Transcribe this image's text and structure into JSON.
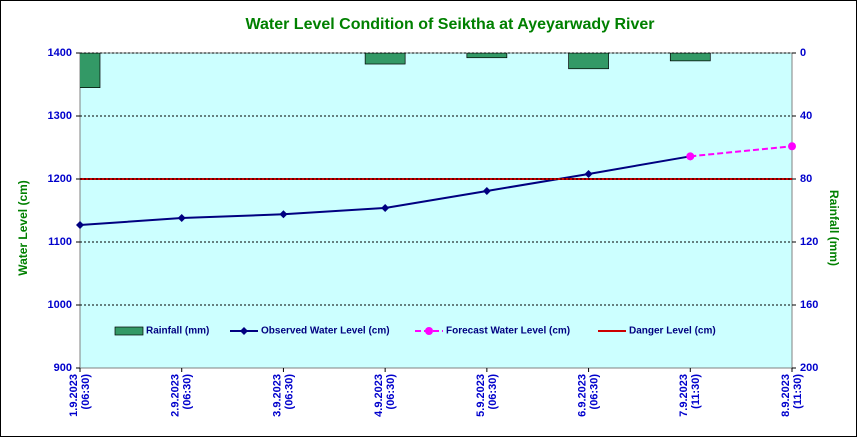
{
  "chart_data": {
    "type": "line",
    "title": "Water Level Condition  of Seiktha at Ayeyarwady  River",
    "ylabel": "Water Level (cm)",
    "y2label": "Rainfall (mm)",
    "categories": [
      [
        "1.9.2023",
        "(06:30)"
      ],
      [
        "2.9.2023",
        "(06:30)"
      ],
      [
        "3.9.2023",
        "(06:30)"
      ],
      [
        "4.9.2023",
        "(06:30)"
      ],
      [
        "5.9.2023",
        "(06:30)"
      ],
      [
        "6.9.2023",
        "(06:30)"
      ],
      [
        "7.9.2023",
        "(11:30)"
      ],
      [
        "8.9.2023",
        "(11:30)"
      ]
    ],
    "ylim": [
      900,
      1400
    ],
    "yticks": [
      900,
      1000,
      1100,
      1200,
      1300,
      1400
    ],
    "y2lim": [
      0,
      200
    ],
    "y2ticks": [
      0,
      40,
      80,
      120,
      160,
      200
    ],
    "y2reversed": true,
    "grid": true,
    "series": [
      {
        "name": "Rainfall (mm)",
        "type": "bar",
        "axis": "y2",
        "color": "#339966",
        "values": [
          22,
          0,
          0,
          7,
          3,
          10,
          5,
          null
        ]
      },
      {
        "name": "Observed Water Level (cm)",
        "type": "line",
        "marker": "diamond",
        "color": "#000080",
        "values": [
          1127,
          1138,
          1144,
          1154,
          1181,
          1208,
          1236,
          null
        ]
      },
      {
        "name": "Forecast Water Level (cm)",
        "type": "line",
        "marker": "circle",
        "dashed": true,
        "color": "#ff00ff",
        "values": [
          null,
          null,
          null,
          null,
          null,
          null,
          1236,
          1252
        ]
      },
      {
        "name": "Danger Level (cm)",
        "type": "line",
        "color": "#cc0000",
        "values": [
          1200,
          1200,
          1200,
          1200,
          1200,
          1200,
          1200,
          1200
        ]
      }
    ]
  }
}
